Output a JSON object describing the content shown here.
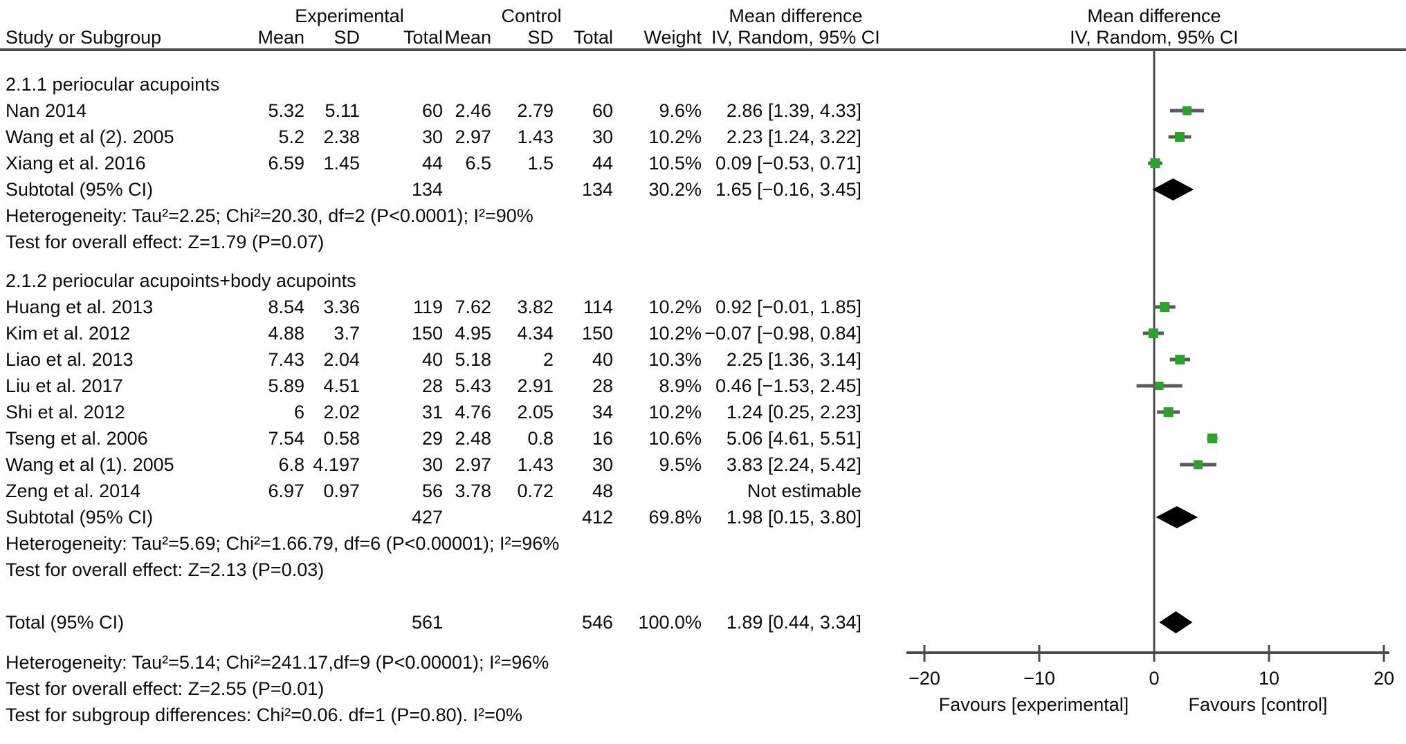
{
  "header": {
    "group_experimental": "Experimental",
    "group_control": "Control",
    "md_left_line1": "Mean difference",
    "md_left_line2": "IV, Random, 95% CI",
    "md_right_line1": "Mean difference",
    "md_right_line2": "IV, Random, 95% CI",
    "col_study": "Study or Subgroup",
    "col_mean_exp": "Mean",
    "col_sd_exp": "SD",
    "col_total_exp": "Total",
    "col_mean_ctl": "Mean",
    "col_sd_ctl": "SD",
    "col_total_ctl": "Total",
    "col_weight": "Weight"
  },
  "colors": {
    "marker_green": "#28a428",
    "ci_line": "#5a5a5a",
    "diamond": "#000000",
    "rule": "#4a4a4a",
    "axis": "#4a4a4a",
    "text": "#0d0d0d"
  },
  "chart_data": {
    "type": "forest",
    "effect_measure": "Mean difference",
    "model": "IV, Random, 95% CI",
    "xlim": [
      -20,
      20
    ],
    "ticks": [
      -20,
      -10,
      0,
      10,
      20
    ],
    "tick_labels": [
      "−20",
      "−10",
      "0",
      "10",
      "20"
    ],
    "favours_left": "Favours [experimental]",
    "favours_right": "Favours [control]",
    "rows": [
      {
        "kind": "heading",
        "label": "2.1.1 periocular acupoints"
      },
      {
        "kind": "study",
        "label": "Nan 2014",
        "mean_e": "5.32",
        "sd_e": "5.11",
        "total_e": "60",
        "mean_c": "2.46",
        "sd_c": "2.79",
        "total_c": "60",
        "weight": "9.6%",
        "w": 9.6,
        "effect": "2.86 [1.39, 4.33]",
        "est": 2.86,
        "lo": 1.39,
        "hi": 4.33
      },
      {
        "kind": "study",
        "label": "Wang et al (2). 2005",
        "mean_e": "5.2",
        "sd_e": "2.38",
        "total_e": "30",
        "mean_c": "2.97",
        "sd_c": "1.43",
        "total_c": "30",
        "weight": "10.2%",
        "w": 10.2,
        "effect": "2.23 [1.24, 3.22]",
        "est": 2.23,
        "lo": 1.24,
        "hi": 3.22
      },
      {
        "kind": "study",
        "label": "Xiang et al. 2016",
        "mean_e": "6.59",
        "sd_e": "1.45",
        "total_e": "44",
        "mean_c": "6.5",
        "sd_c": "1.5",
        "total_c": "44",
        "weight": "10.5%",
        "w": 10.5,
        "effect": "0.09 [−0.53, 0.71]",
        "est": 0.09,
        "lo": -0.53,
        "hi": 0.71
      },
      {
        "kind": "subtotal",
        "label": "Subtotal (95% CI)",
        "total_e": "134",
        "total_c": "134",
        "weight": "30.2%",
        "effect": "1.65 [−0.16, 3.45]",
        "est": 1.65,
        "lo": -0.16,
        "hi": 3.45
      },
      {
        "kind": "note",
        "label": "Heterogeneity: Tau²=2.25; Chi²=20.30, df=2 (P<0.0001); I²=90%"
      },
      {
        "kind": "note",
        "label": "Test for overall effect: Z=1.79 (P=0.07)"
      },
      {
        "kind": "heading",
        "label": "2.1.2 periocular acupoints+body acupoints"
      },
      {
        "kind": "study",
        "label": "Huang et al. 2013",
        "mean_e": "8.54",
        "sd_e": "3.36",
        "total_e": "119",
        "mean_c": "7.62",
        "sd_c": "3.82",
        "total_c": "114",
        "weight": "10.2%",
        "w": 10.2,
        "effect": "0.92 [−0.01, 1.85]",
        "est": 0.92,
        "lo": -0.01,
        "hi": 1.85
      },
      {
        "kind": "study",
        "label": "Kim et al. 2012",
        "mean_e": "4.88",
        "sd_e": "3.7",
        "total_e": "150",
        "mean_c": "4.95",
        "sd_c": "4.34",
        "total_c": "150",
        "weight": "10.2%",
        "w": 10.2,
        "effect": "−0.07 [−0.98, 0.84]",
        "est": -0.07,
        "lo": -0.98,
        "hi": 0.84
      },
      {
        "kind": "study",
        "label": "Liao et al. 2013",
        "mean_e": "7.43",
        "sd_e": "2.04",
        "total_e": "40",
        "mean_c": "5.18",
        "sd_c": "2",
        "total_c": "40",
        "weight": "10.3%",
        "w": 10.3,
        "effect": "2.25 [1.36, 3.14]",
        "est": 2.25,
        "lo": 1.36,
        "hi": 3.14
      },
      {
        "kind": "study",
        "label": "Liu et al. 2017",
        "mean_e": "5.89",
        "sd_e": "4.51",
        "total_e": "28",
        "mean_c": "5.43",
        "sd_c": "2.91",
        "total_c": "28",
        "weight": "8.9%",
        "w": 8.9,
        "effect": "0.46 [−1.53, 2.45]",
        "est": 0.46,
        "lo": -1.53,
        "hi": 2.45
      },
      {
        "kind": "study",
        "label": "Shi et al. 2012",
        "mean_e": "6",
        "sd_e": "2.02",
        "total_e": "31",
        "mean_c": "4.76",
        "sd_c": "2.05",
        "total_c": "34",
        "weight": "10.2%",
        "w": 10.2,
        "effect": "1.24 [0.25, 2.23]",
        "est": 1.24,
        "lo": 0.25,
        "hi": 2.23
      },
      {
        "kind": "study",
        "label": "Tseng et al. 2006",
        "mean_e": "7.54",
        "sd_e": "0.58",
        "total_e": "29",
        "mean_c": "2.48",
        "sd_c": "0.8",
        "total_c": "16",
        "weight": "10.6%",
        "w": 10.6,
        "effect": "5.06 [4.61, 5.51]",
        "est": 5.06,
        "lo": 4.61,
        "hi": 5.51
      },
      {
        "kind": "study",
        "label": "Wang et al (1). 2005",
        "mean_e": "6.8",
        "sd_e": "4.197",
        "total_e": "30",
        "mean_c": "2.97",
        "sd_c": "1.43",
        "total_c": "30",
        "weight": "9.5%",
        "w": 9.5,
        "effect": "3.83 [2.24, 5.42]",
        "est": 3.83,
        "lo": 2.24,
        "hi": 5.42
      },
      {
        "kind": "study",
        "label": "Zeng et al. 2014",
        "mean_e": "6.97",
        "sd_e": "0.97",
        "total_e": "56",
        "mean_c": "3.78",
        "sd_c": "0.72",
        "total_c": "48",
        "weight": "",
        "w": 0,
        "effect": "Not estimable",
        "est": null
      },
      {
        "kind": "subtotal",
        "label": "Subtotal (95% CI)",
        "total_e": "427",
        "total_c": "412",
        "weight": "69.8%",
        "effect": "1.98 [0.15, 3.80]",
        "est": 1.98,
        "lo": 0.15,
        "hi": 3.8
      },
      {
        "kind": "note",
        "label": "Heterogeneity: Tau²=5.69; Chi²=1.66.79, df=6 (P<0.00001); I²=96%"
      },
      {
        "kind": "note",
        "label": "Test for overall effect: Z=2.13 (P=0.03)"
      },
      {
        "kind": "total",
        "label": "Total (95% CI)",
        "total_e": "561",
        "total_c": "546",
        "weight": "100.0%",
        "effect": "1.89 [0.44, 3.34]",
        "est": 1.89,
        "lo": 0.44,
        "hi": 3.34
      },
      {
        "kind": "note",
        "label": "Heterogeneity: Tau²=5.14; Chi²=241.17,df=9 (P<0.00001); I²=96%"
      },
      {
        "kind": "note",
        "label": "Test for overall effect: Z=2.55 (P=0.01)"
      },
      {
        "kind": "note",
        "label": "Test for subgroup differences: Chi²=0.06. df=1 (P=0.80). I²=0%"
      }
    ]
  }
}
